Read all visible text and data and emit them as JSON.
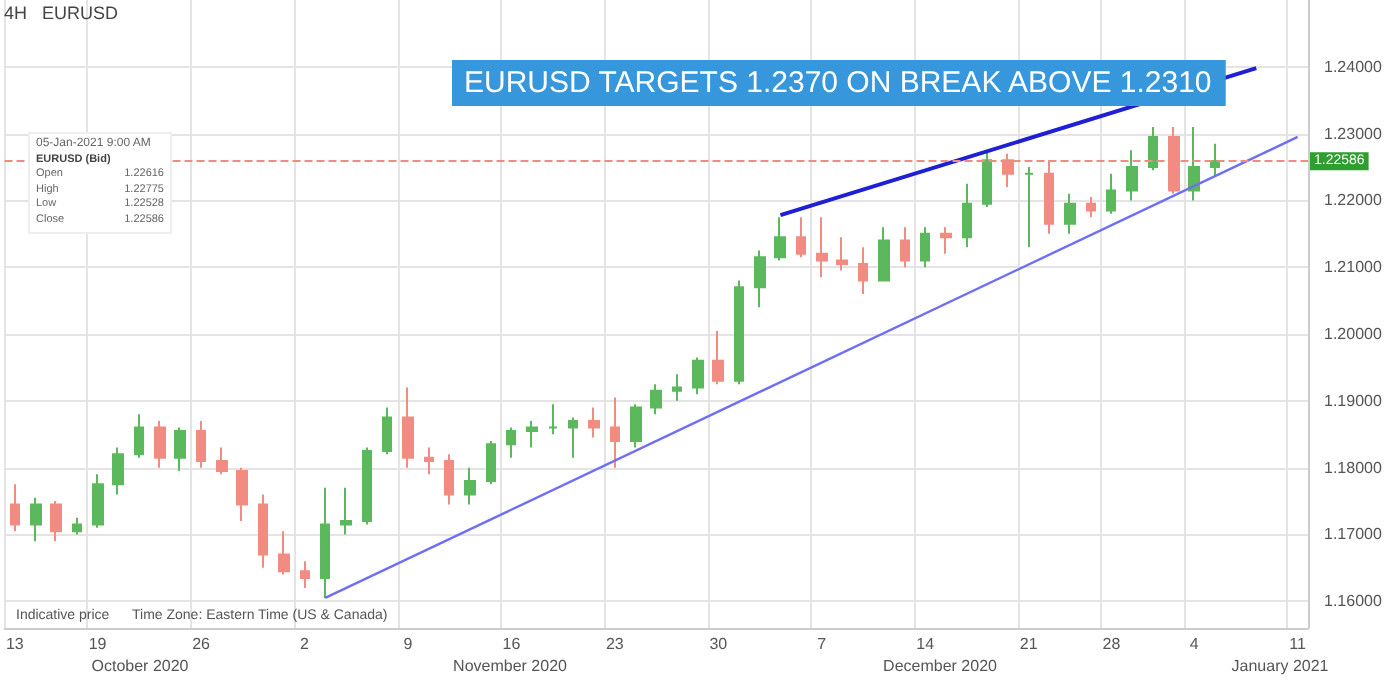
{
  "chart_data": {
    "type": "candlestick",
    "title": "EURUSD TARGETS 1.2370 ON BREAK ABOVE 1.2310",
    "subtitle": "4H   EURUSD",
    "categories": [
      "13",
      null,
      null,
      null,
      "19",
      null,
      null,
      null,
      null,
      "26",
      null,
      null,
      null,
      null,
      "2",
      null,
      null,
      null,
      null,
      "9",
      null,
      null,
      null,
      null,
      "16",
      null,
      null,
      null,
      null,
      "23",
      null,
      null,
      null,
      null,
      "30",
      null,
      null,
      null,
      null,
      "7",
      null,
      null,
      null,
      null,
      "14",
      null,
      null,
      null,
      null,
      "21",
      null,
      null,
      null,
      "28",
      null,
      null,
      null,
      "4",
      null,
      null,
      null,
      null,
      "11"
    ],
    "ohlc": [
      [
        1.1745,
        1.1775,
        1.1705,
        1.1715
      ],
      [
        1.1715,
        1.1755,
        1.169,
        1.1745
      ],
      [
        1.1745,
        1.175,
        1.169,
        1.1705
      ],
      [
        1.1705,
        1.1725,
        1.17,
        1.1715
      ],
      [
        1.1715,
        1.179,
        1.171,
        1.1775
      ],
      [
        1.1775,
        1.183,
        1.176,
        1.182
      ],
      [
        1.182,
        1.188,
        1.1815,
        1.186
      ],
      [
        1.186,
        1.187,
        1.18,
        1.1815
      ],
      [
        1.1815,
        1.186,
        1.1795,
        1.1855
      ],
      [
        1.1855,
        1.187,
        1.18,
        1.181
      ],
      [
        1.181,
        1.183,
        1.179,
        1.1795
      ],
      [
        1.1795,
        1.18,
        1.172,
        1.1745
      ],
      [
        1.1745,
        1.176,
        1.165,
        1.167
      ],
      [
        1.167,
        1.1705,
        1.164,
        1.1645
      ],
      [
        1.1645,
        1.166,
        1.162,
        1.1635
      ],
      [
        1.1635,
        1.177,
        1.1605,
        1.1715
      ],
      [
        1.1715,
        1.177,
        1.17,
        1.172
      ],
      [
        1.172,
        1.183,
        1.1715,
        1.1825
      ],
      [
        1.1825,
        1.189,
        1.182,
        1.1875
      ],
      [
        1.1875,
        1.192,
        1.18,
        1.1815
      ],
      [
        1.1815,
        1.183,
        1.179,
        1.181
      ],
      [
        1.181,
        1.182,
        1.1745,
        1.176
      ],
      [
        1.176,
        1.18,
        1.1745,
        1.178
      ],
      [
        1.178,
        1.184,
        1.1775,
        1.1835
      ],
      [
        1.1835,
        1.186,
        1.1815,
        1.1855
      ],
      [
        1.1855,
        1.187,
        1.183,
        1.186
      ],
      [
        1.186,
        1.1895,
        1.185,
        1.186
      ],
      [
        1.186,
        1.1875,
        1.1815,
        1.187
      ],
      [
        1.187,
        1.189,
        1.1845,
        1.186
      ],
      [
        1.186,
        1.1905,
        1.18,
        1.184
      ],
      [
        1.184,
        1.1895,
        1.183,
        1.189
      ],
      [
        1.189,
        1.1925,
        1.188,
        1.1915
      ],
      [
        1.1915,
        1.194,
        1.19,
        1.192
      ],
      [
        1.192,
        1.1965,
        1.191,
        1.196
      ],
      [
        1.196,
        1.2005,
        1.1925,
        1.193
      ],
      [
        1.193,
        1.208,
        1.1925,
        1.207
      ],
      [
        1.207,
        1.2125,
        1.204,
        1.2115
      ],
      [
        1.2115,
        1.2175,
        1.211,
        1.2145
      ],
      [
        1.2145,
        1.2175,
        1.2115,
        1.212
      ],
      [
        1.212,
        1.2175,
        1.2085,
        1.211
      ],
      [
        1.211,
        1.2145,
        1.2095,
        1.2105
      ],
      [
        1.2105,
        1.213,
        1.206,
        1.208
      ],
      [
        1.208,
        1.216,
        1.208,
        1.214
      ],
      [
        1.214,
        1.216,
        1.21,
        1.211
      ],
      [
        1.211,
        1.216,
        1.21,
        1.215
      ],
      [
        1.215,
        1.216,
        1.212,
        1.2145
      ],
      [
        1.2145,
        1.2225,
        1.213,
        1.2195
      ],
      [
        1.2195,
        1.2275,
        1.219,
        1.226
      ],
      [
        1.226,
        1.227,
        1.222,
        1.224
      ],
      [
        1.224,
        1.225,
        1.213,
        1.224
      ],
      [
        1.224,
        1.226,
        1.215,
        1.2165
      ],
      [
        1.2165,
        1.221,
        1.215,
        1.2195
      ],
      [
        1.2195,
        1.2205,
        1.2175,
        1.2185
      ],
      [
        1.2185,
        1.224,
        1.218,
        1.2215
      ],
      [
        1.2215,
        1.2275,
        1.22,
        1.225
      ],
      [
        1.225,
        1.231,
        1.2245,
        1.2295
      ],
      [
        1.2295,
        1.231,
        1.221,
        1.2215
      ],
      [
        1.2215,
        1.231,
        1.22,
        1.225
      ],
      [
        1.225,
        1.2285,
        1.2235,
        1.2259
      ],
      null,
      null,
      null,
      null
    ],
    "colors": [
      "#f28b82",
      "#5cb85c",
      "#f28b82",
      "#5cb85c",
      "#5cb85c",
      "#5cb85c",
      "#5cb85c",
      "#f28b82",
      "#5cb85c",
      "#f28b82",
      "#f28b82",
      "#f28b82",
      "#f28b82",
      "#f28b82",
      "#f28b82",
      "#5cb85c",
      "#5cb85c",
      "#5cb85c",
      "#5cb85c",
      "#f28b82",
      "#f28b82",
      "#f28b82",
      "#5cb85c",
      "#5cb85c",
      "#5cb85c",
      "#5cb85c",
      "#5cb85c",
      "#5cb85c",
      "#f28b82",
      "#f28b82",
      "#5cb85c",
      "#5cb85c",
      "#5cb85c",
      "#5cb85c",
      "#f28b82",
      "#5cb85c",
      "#5cb85c",
      "#5cb85c",
      "#f28b82",
      "#f28b82",
      "#f28b82",
      "#f28b82",
      "#5cb85c",
      "#f28b82",
      "#5cb85c",
      "#f28b82",
      "#5cb85c",
      "#5cb85c",
      "#f28b82",
      "#5cb85c",
      "#f28b82",
      "#5cb85c",
      "#f28b82",
      "#5cb85c",
      "#5cb85c",
      "#5cb85c",
      "#f28b82",
      "#5cb85c",
      "#5cb85c",
      null,
      null,
      null,
      null
    ],
    "series": [
      {
        "type": "line",
        "color": "#1f1fd6",
        "values": [
          null,
          null,
          null,
          null,
          null,
          null,
          null,
          null,
          null,
          null,
          null,
          null,
          null,
          null,
          null,
          null,
          null,
          null,
          null,
          null,
          null,
          null,
          null,
          null,
          null,
          null,
          null,
          null,
          null,
          null,
          null,
          null,
          null,
          null,
          null,
          null,
          null,
          1.2178,
          null,
          null,
          null,
          null,
          null,
          null,
          null,
          null,
          null,
          null,
          null,
          null,
          null,
          null,
          null,
          null,
          null,
          null,
          null,
          null,
          null,
          null,
          1.2398,
          null,
          null
        ]
      },
      {
        "type": "line",
        "color": "#6f6ff5",
        "values": [
          null,
          null,
          null,
          null,
          null,
          null,
          null,
          null,
          null,
          null,
          null,
          null,
          null,
          null,
          null,
          1.1605,
          null,
          null,
          null,
          null,
          null,
          null,
          null,
          null,
          null,
          null,
          null,
          null,
          null,
          null,
          null,
          null,
          null,
          null,
          null,
          null,
          null,
          null,
          null,
          null,
          null,
          null,
          null,
          null,
          null,
          null,
          null,
          null,
          null,
          null,
          null,
          null,
          null,
          null,
          null,
          null,
          null,
          null,
          null,
          null,
          null,
          null,
          1.2295
        ]
      }
    ],
    "ylim": [
      1.156,
      1.25
    ],
    "yticks": [
      {
        "value": 1.16,
        "label": "1.16000"
      },
      {
        "value": 1.17,
        "label": "1.17000"
      },
      {
        "value": 1.18,
        "label": "1.18000"
      },
      {
        "value": 1.19,
        "label": "1.19000"
      },
      {
        "value": 1.2,
        "label": "1.20000"
      },
      {
        "value": 1.21,
        "label": "1.21000"
      },
      {
        "value": 1.22,
        "label": "1.22000"
      },
      {
        "value": 1.23,
        "label": "1.23000"
      },
      {
        "value": 1.24,
        "label": "1.24000"
      }
    ],
    "ref_lines": [
      {
        "axis": "y",
        "value": 1.22586,
        "label": "1.22586",
        "color": "#f28b82",
        "line_style": "dashed"
      }
    ],
    "annotations": [
      "05-Jan-2021 9:00 AM",
      "EURUSD (Bid)",
      "Open",
      "1.22616",
      "High",
      "1.22775",
      "Low",
      "1.22528",
      "Close",
      "1.22586",
      "Indicative price",
      "Time Zone: Eastern Time (US & Canada)",
      "October 2020",
      "November 2020",
      "December 2020",
      "January 2021"
    ],
    "grid": true
  }
}
